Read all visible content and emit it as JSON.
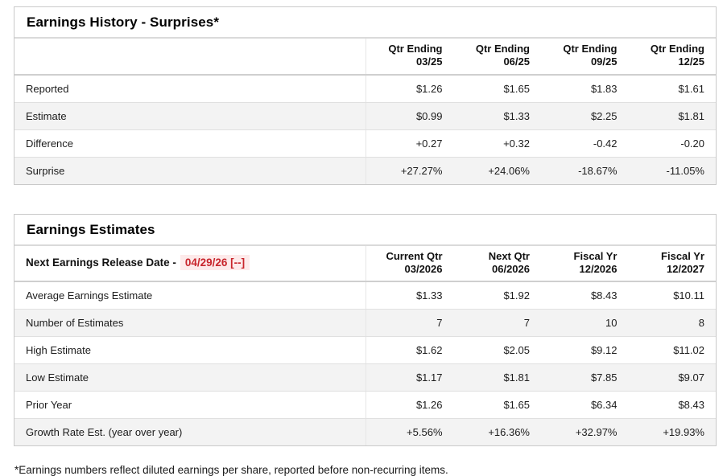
{
  "colors": {
    "positive_text": "#26826e",
    "negative_text": "#c8252c",
    "release_date_text": "#c8252c",
    "release_date_highlight_bg": "#fdeaea",
    "alt_row_bg": "#f3f3f3",
    "table_border": "#c9c9c9"
  },
  "earnings_history": {
    "title": "Earnings History - Surprises*",
    "columns": [
      {
        "top": "Qtr Ending",
        "bottom": "03/25"
      },
      {
        "top": "Qtr Ending",
        "bottom": "06/25"
      },
      {
        "top": "Qtr Ending",
        "bottom": "09/25"
      },
      {
        "top": "Qtr Ending",
        "bottom": "12/25"
      }
    ],
    "rows": [
      {
        "label": "Reported",
        "values": [
          "$1.26",
          "$1.65",
          "$1.83",
          "$1.61"
        ]
      },
      {
        "label": "Estimate",
        "values": [
          "$0.99",
          "$1.33",
          "$2.25",
          "$1.81"
        ]
      },
      {
        "label": "Difference",
        "values": [
          "+0.27",
          "+0.32",
          "-0.42",
          "-0.20"
        ]
      },
      {
        "label": "Surprise",
        "values": [
          "+27.27%",
          "+24.06%",
          "-18.67%",
          "-11.05%"
        ]
      }
    ]
  },
  "earnings_estimates": {
    "title": "Earnings Estimates",
    "release_date_label": "Next Earnings Release Date -",
    "release_date_value": "04/29/26 [--]",
    "columns": [
      {
        "top": "Current Qtr",
        "bottom": "03/2026"
      },
      {
        "top": "Next Qtr",
        "bottom": "06/2026"
      },
      {
        "top": "Fiscal Yr",
        "bottom": "12/2026"
      },
      {
        "top": "Fiscal Yr",
        "bottom": "12/2027"
      }
    ],
    "rows": [
      {
        "label": "Average Earnings Estimate",
        "values": [
          "$1.33",
          "$1.92",
          "$8.43",
          "$10.11"
        ]
      },
      {
        "label": "Number of Estimates",
        "values": [
          "7",
          "7",
          "10",
          "8"
        ]
      },
      {
        "label": "High Estimate",
        "values": [
          "$1.62",
          "$2.05",
          "$9.12",
          "$11.02"
        ]
      },
      {
        "label": "Low Estimate",
        "values": [
          "$1.17",
          "$1.81",
          "$7.85",
          "$9.07"
        ]
      },
      {
        "label": "Prior Year",
        "values": [
          "$1.26",
          "$1.65",
          "$6.34",
          "$8.43"
        ]
      },
      {
        "label": "Growth Rate Est. (year over year)",
        "values": [
          "+5.56%",
          "+16.36%",
          "+32.97%",
          "+19.93%"
        ]
      }
    ]
  },
  "footnote": "*Earnings numbers reflect diluted earnings per share, reported before non-recurring items."
}
